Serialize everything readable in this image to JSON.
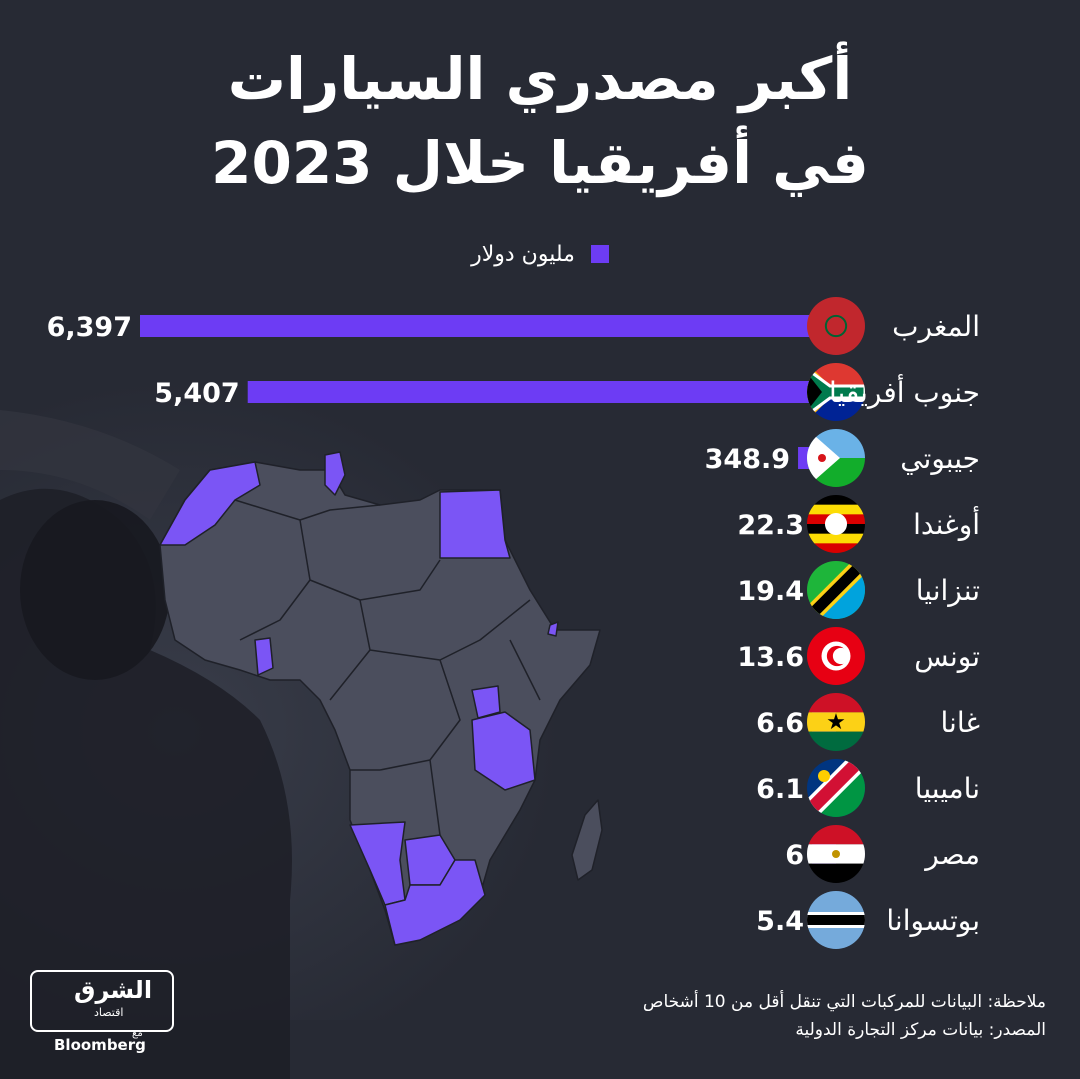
{
  "title": {
    "line1": "أكبر مصدري السيارات",
    "line2": "في أفريقيا خلال 2023"
  },
  "legend": {
    "label": "مليون دولار",
    "color": "#6d3cf4"
  },
  "colors": {
    "background": "#272a34",
    "bar": "#6d3cf4",
    "map_land": "#4a4d5c",
    "map_highlight": "#7b55f5"
  },
  "chart_data": {
    "type": "bar",
    "orientation": "horizontal",
    "unit": "مليون دولار",
    "categories": [
      "المغرب",
      "جنوب أفريقيا",
      "جيبوتي",
      "أوغندا",
      "تنزانيا",
      "تونس",
      "غانا",
      "ناميبيا",
      "مصر",
      "بوتسوانا"
    ],
    "values": [
      6397,
      5407,
      348.9,
      22.3,
      19.4,
      13.6,
      6.6,
      6.1,
      6,
      5.4
    ],
    "value_labels": [
      "6,397",
      "5,407",
      "348.9",
      "22.3",
      "19.4",
      "13.6",
      "6.6",
      "6.1",
      "6",
      "5.4"
    ],
    "flags": [
      "morocco-flag",
      "south-africa-flag",
      "djibouti-flag",
      "uganda-flag",
      "tanzania-flag",
      "tunisia-flag",
      "ghana-flag",
      "namibia-flag",
      "egypt-flag",
      "botswana-flag"
    ]
  },
  "footer": {
    "note": "ملاحظة: البيانات للمركبات التي تنقل أقل من 10 أشخاص",
    "source": "المصدر: بيانات مركز التجارة الدولية"
  },
  "logo": {
    "main": "الشرق",
    "sub": "اقتصاد",
    "with": "مع",
    "partner": "Bloomberg"
  }
}
